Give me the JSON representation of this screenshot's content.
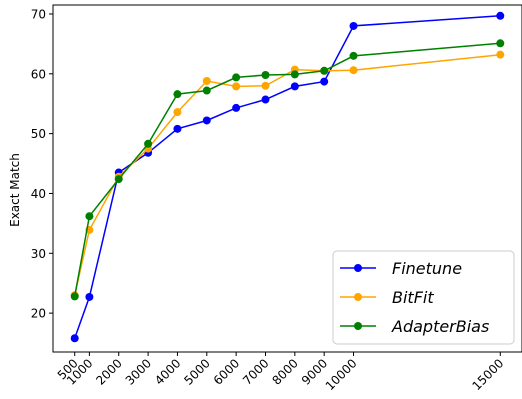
{
  "chart_data": {
    "type": "line",
    "title": "",
    "xlabel": "",
    "ylabel": "Exact Match",
    "x": [
      500,
      1000,
      2000,
      3000,
      4000,
      5000,
      6000,
      7000,
      8000,
      9000,
      10000,
      15000
    ],
    "x_tick_labels": [
      "500",
      "1000",
      "2000",
      "3000",
      "4000",
      "5000",
      "6000",
      "7000",
      "8000",
      "9000",
      "10000",
      "15000"
    ],
    "ylim": [
      13.5,
      71.5
    ],
    "yticks": [
      20,
      30,
      40,
      50,
      60,
      70
    ],
    "grid": false,
    "legend_position": "lower-right",
    "series": [
      {
        "name": "Finetune",
        "color": "#0000ff",
        "values": [
          15.8,
          22.7,
          43.5,
          46.8,
          50.8,
          52.2,
          54.3,
          55.7,
          57.9,
          58.7,
          68.0,
          69.7
        ]
      },
      {
        "name": "BitFit",
        "color": "#ffa500",
        "values": [
          23.0,
          33.9,
          42.8,
          47.5,
          53.6,
          58.8,
          57.9,
          58.0,
          60.7,
          60.5,
          60.6,
          63.2
        ]
      },
      {
        "name": "AdapterBias",
        "color": "#008000",
        "values": [
          22.8,
          36.2,
          42.4,
          48.3,
          56.6,
          57.2,
          59.4,
          59.8,
          59.9,
          60.5,
          63.0,
          65.1
        ]
      }
    ]
  }
}
